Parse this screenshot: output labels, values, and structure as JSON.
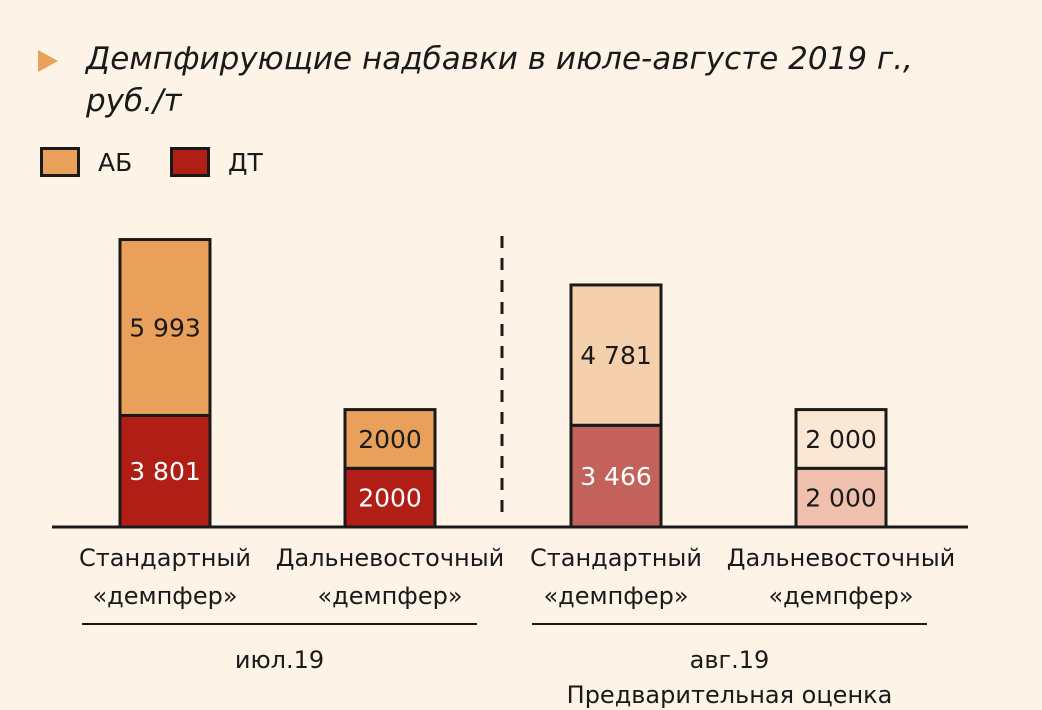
{
  "title": "Демпфирующие надбавки в июле-августе 2019 г., руб./т",
  "title_marker_icon": "triangle-right-icon",
  "legend": [
    {
      "label": "АБ",
      "color": "#e8a05a"
    },
    {
      "label": "ДТ",
      "color": "#b01e16"
    }
  ],
  "chart_data": {
    "type": "bar",
    "stacked": true,
    "categories": [
      "Стандартный «демпфер»",
      "Дальневосточный «демпфер»",
      "Стандартный «демпфер»",
      "Дальневосточный «демпфер»"
    ],
    "series": [
      {
        "name": "ДТ",
        "values": [
          3801,
          2000,
          3466,
          2000
        ],
        "value_labels": [
          "3 801",
          "2000",
          "3 466",
          "2 000"
        ],
        "colors": [
          "#b01e16",
          "#b01e16",
          "#c2625a",
          "#f0c0ae"
        ],
        "label_colors": [
          "#ffffff",
          "#ffffff",
          "#ffffff",
          "#1a1a1a"
        ]
      },
      {
        "name": "АБ",
        "values": [
          5993,
          2000,
          4781,
          2000
        ],
        "value_labels": [
          "5 993",
          "2000",
          "4 781",
          "2 000"
        ],
        "colors": [
          "#e8a05a",
          "#e8a05a",
          "#f4d0ac",
          "#fbe8d4"
        ],
        "label_colors": [
          "#1a1a1a",
          "#1a1a1a",
          "#1a1a1a",
          "#1a1a1a"
        ]
      }
    ],
    "groups": [
      {
        "label": "июл.19",
        "sublabel": "",
        "categories": [
          0,
          1
        ]
      },
      {
        "label": "авг.19",
        "sublabel": "Предварительная оценка",
        "categories": [
          2,
          3
        ]
      }
    ],
    "ylim": [
      0,
      10500
    ],
    "grid": false,
    "legend_position": "top-left"
  }
}
